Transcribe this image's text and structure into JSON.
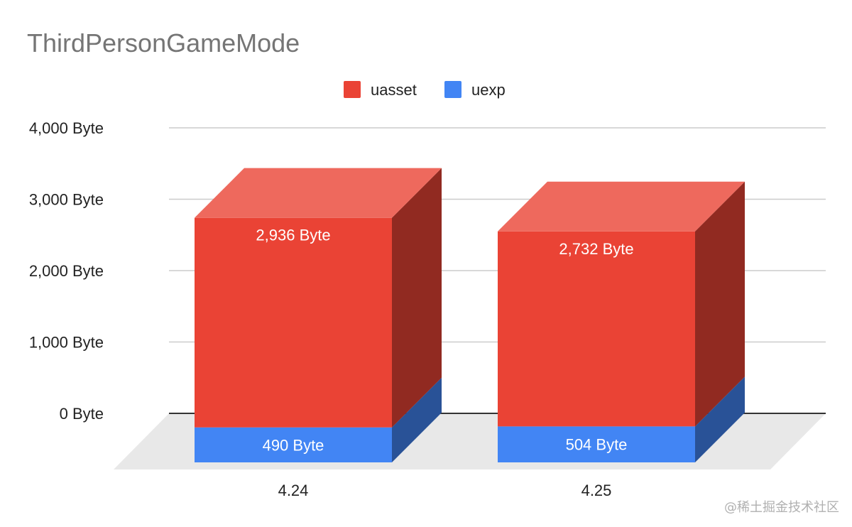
{
  "chart_data": {
    "type": "bar",
    "stacked": true,
    "three_d": true,
    "title": "ThirdPersonGameMode",
    "categories": [
      "4.24",
      "4.25"
    ],
    "series": [
      {
        "name": "uexp",
        "values": [
          490,
          504
        ],
        "labels": [
          "490 Byte",
          "504 Byte"
        ],
        "color": "#4285f4"
      },
      {
        "name": "uasset",
        "values": [
          2936,
          2732
        ],
        "labels": [
          "2,936 Byte",
          "2,732 Byte"
        ],
        "color": "#ea4335"
      }
    ],
    "legend_order": [
      "uasset",
      "uexp"
    ],
    "legend_position": "top-center",
    "y_ticks": [
      0,
      1000,
      2000,
      3000,
      4000
    ],
    "y_tick_labels": [
      "0 Byte",
      "1,000 Byte",
      "2,000 Byte",
      "3,000 Byte",
      "4,000 Byte"
    ],
    "ylim": [
      0,
      4000
    ],
    "grid": true
  },
  "watermark": "@稀土掘金技术社区"
}
